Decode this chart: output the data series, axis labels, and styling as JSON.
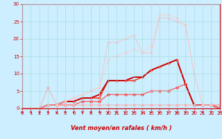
{
  "bg_color": "#cceeff",
  "grid_color": "#aadddd",
  "xlabel": "Vent moyen/en rafales ( km/h )",
  "xlim": [
    0,
    23
  ],
  "ylim": [
    0,
    30
  ],
  "xticks": [
    0,
    1,
    2,
    3,
    4,
    5,
    6,
    7,
    8,
    9,
    10,
    11,
    12,
    13,
    14,
    15,
    16,
    17,
    18,
    19,
    20,
    21,
    22,
    23
  ],
  "yticks": [
    0,
    5,
    10,
    15,
    20,
    25,
    30
  ],
  "series": [
    {
      "x": [
        0,
        1,
        2,
        3,
        4,
        5,
        6,
        7,
        8,
        9,
        10,
        11,
        12,
        13,
        14,
        15,
        16,
        17,
        18,
        19,
        20,
        21,
        22,
        23
      ],
      "y": [
        0,
        0,
        0,
        1,
        1,
        1,
        1,
        2,
        2,
        2,
        4,
        4,
        4,
        4,
        4,
        5,
        5,
        5,
        6,
        7,
        1,
        1,
        1,
        1
      ],
      "color": "#ff4444",
      "alpha": 1.0,
      "linewidth": 0.8,
      "marker": "D",
      "markersize": 1.8
    },
    {
      "x": [
        0,
        1,
        2,
        3,
        4,
        5,
        6,
        7,
        8,
        9,
        10,
        11,
        12,
        13,
        14,
        15,
        16,
        17,
        18,
        19,
        20,
        21,
        22,
        23
      ],
      "y": [
        0,
        0,
        0,
        1,
        1,
        2,
        2,
        3,
        3,
        3,
        8,
        8,
        8,
        8,
        9,
        11,
        12,
        13,
        14,
        7,
        1,
        1,
        1,
        0
      ],
      "color": "#ff2200",
      "alpha": 1.0,
      "linewidth": 1.0,
      "marker": "+",
      "markersize": 2.5
    },
    {
      "x": [
        0,
        1,
        2,
        3,
        4,
        5,
        6,
        7,
        8,
        9,
        10,
        11,
        12,
        13,
        14,
        15,
        16,
        17,
        18,
        19,
        20,
        21,
        22,
        23
      ],
      "y": [
        0,
        0,
        0,
        1,
        1,
        2,
        2,
        3,
        3,
        4,
        8,
        8,
        8,
        9,
        9,
        11,
        12,
        13,
        14,
        7,
        1,
        1,
        1,
        0
      ],
      "color": "#cc0000",
      "alpha": 1.0,
      "linewidth": 1.4,
      "marker": null,
      "markersize": 0
    },
    {
      "x": [
        0,
        1,
        2,
        3,
        4,
        5,
        6,
        7,
        8,
        9,
        10,
        11,
        12,
        13,
        14,
        15,
        16,
        17,
        18,
        19,
        20,
        21,
        22,
        23
      ],
      "y": [
        0,
        0,
        0,
        6,
        1,
        1,
        1,
        1,
        1,
        1,
        1,
        1,
        1,
        1,
        1,
        1,
        1,
        1,
        1,
        1,
        1,
        1,
        1,
        0
      ],
      "color": "#ffaaaa",
      "alpha": 0.85,
      "linewidth": 0.8,
      "marker": "D",
      "markersize": 1.8
    },
    {
      "x": [
        0,
        1,
        2,
        3,
        4,
        5,
        6,
        7,
        8,
        9,
        10,
        11,
        12,
        13,
        14,
        15,
        16,
        17,
        18,
        19,
        20,
        21,
        22,
        23
      ],
      "y": [
        0,
        0,
        0,
        1,
        1,
        2,
        3,
        4,
        5,
        6,
        19,
        19,
        20,
        21,
        16,
        16,
        26,
        26,
        25,
        24,
        10,
        1,
        1,
        1
      ],
      "color": "#ffbbbb",
      "alpha": 0.75,
      "linewidth": 0.8,
      "marker": "+",
      "markersize": 2.5
    },
    {
      "x": [
        0,
        1,
        2,
        3,
        4,
        5,
        6,
        7,
        8,
        9,
        10,
        11,
        12,
        13,
        14,
        15,
        16,
        17,
        18,
        19,
        20,
        21,
        22,
        23
      ],
      "y": [
        0,
        0,
        0,
        1,
        1,
        2,
        3,
        4,
        5,
        6,
        14,
        15,
        16,
        17,
        16,
        18,
        27,
        27,
        26,
        24,
        10,
        1,
        1,
        1
      ],
      "color": "#ffcccc",
      "alpha": 0.65,
      "linewidth": 0.8,
      "marker": "D",
      "markersize": 1.5
    }
  ],
  "arrow_color": "#cc0000",
  "label_color": "#cc0000",
  "tick_label_color": "#cc0000",
  "axis_color": "#cc0000",
  "label_fontsize": 6,
  "tick_fontsize": 5
}
